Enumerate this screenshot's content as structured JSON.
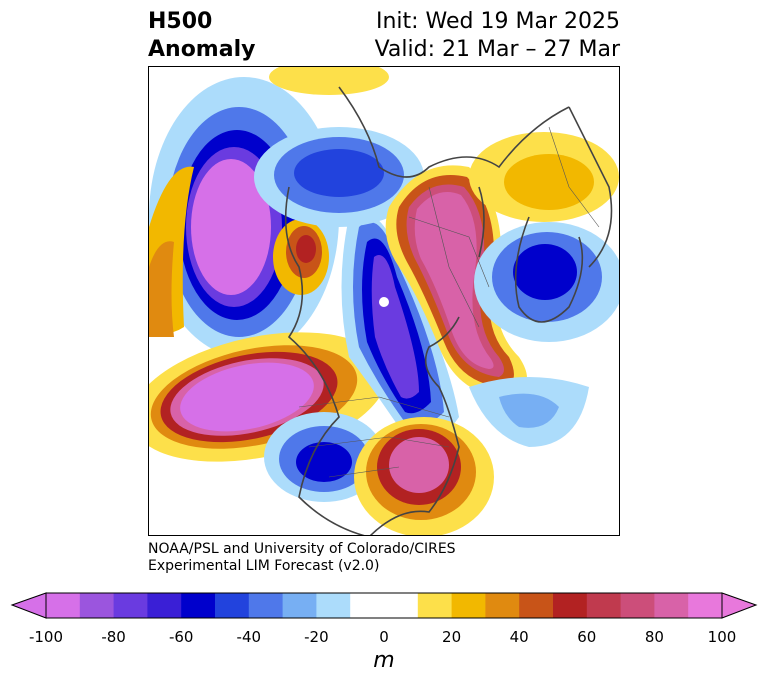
{
  "title": {
    "left_line1": "H500",
    "left_line2": "Anomaly",
    "right_line1": "Init: Wed 19 Mar 2025",
    "right_line2": "Valid: 21 Mar – 27 Mar"
  },
  "credit": {
    "line1": "NOAA/PSL and University of Colorado/CIRES",
    "line2": "Experimental LIM Forecast (v2.0)"
  },
  "colorbar": {
    "units": "m",
    "ticks": [
      "-100",
      "-80",
      "-60",
      "-40",
      "-20",
      "0",
      "20",
      "40",
      "60",
      "80",
      "100"
    ],
    "colors": [
      "#d670e8",
      "#9b55de",
      "#6a3be0",
      "#3a1fd6",
      "#0000cc",
      "#2243dd",
      "#4f78ea",
      "#77aff3",
      "#acdcfb",
      "#ffffff",
      "#ffffff",
      "#fde04a",
      "#f2b800",
      "#e08a10",
      "#c85418",
      "#b22222",
      "#c03a4e",
      "#cc4e7a",
      "#d862a8",
      "#e878dc"
    ]
  },
  "map": {
    "features": [
      {
        "name": "negative-anomaly-west-pacific",
        "sign": "negative"
      },
      {
        "name": "positive-anomaly-north-pacific",
        "sign": "positive"
      },
      {
        "name": "positive-anomaly-bering",
        "sign": "positive"
      },
      {
        "name": "negative-anomaly-arctic",
        "sign": "negative"
      },
      {
        "name": "negative-anomaly-hudson",
        "sign": "negative"
      },
      {
        "name": "positive-anomaly-siberia",
        "sign": "positive"
      },
      {
        "name": "positive-anomaly-north-atlantic",
        "sign": "positive"
      },
      {
        "name": "negative-anomaly-europe",
        "sign": "negative"
      },
      {
        "name": "negative-anomaly-us-west",
        "sign": "negative"
      },
      {
        "name": "positive-anomaly-us-southeast",
        "sign": "positive"
      }
    ]
  }
}
